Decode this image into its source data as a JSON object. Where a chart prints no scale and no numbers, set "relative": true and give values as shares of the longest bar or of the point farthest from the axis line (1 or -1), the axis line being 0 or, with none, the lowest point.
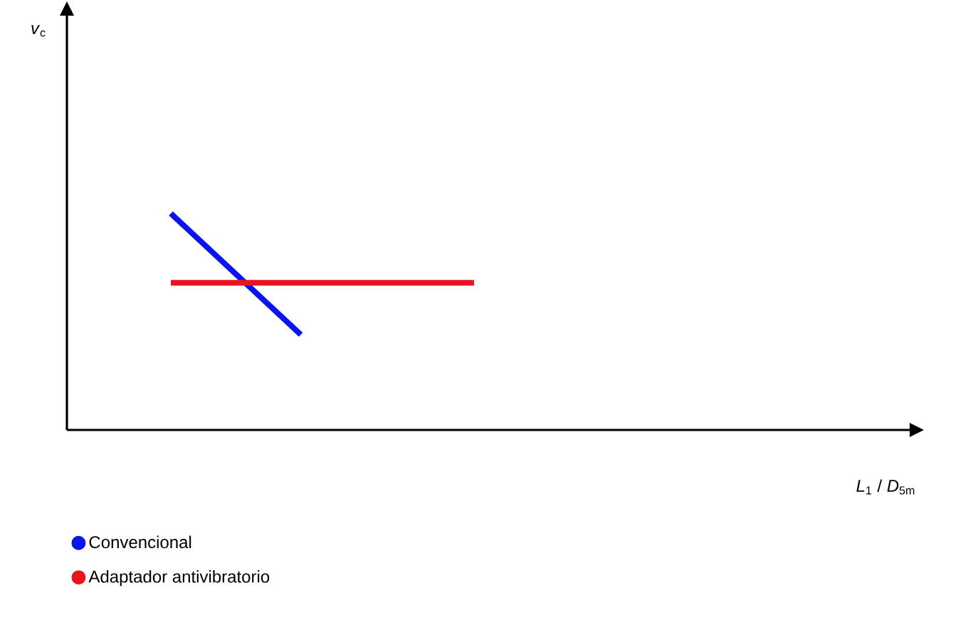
{
  "chart_data": {
    "type": "line",
    "relative": true,
    "annotations": [
      "*v*$_{c}$",
      "*L*$_{1}$ / *D*$_{5m}$"
    ],
    "categories": [
      null,
      null,
      null,
      null,
      null,
      null,
      null,
      null
    ],
    "series": [
      {
        "name": "Convencional",
        "color": "#0a14f0",
        "values": [
          1,
          null,
          null,
          0.44,
          null,
          null,
          null,
          null
        ]
      },
      {
        "name": "Adaptador antivibratorio",
        "color": "#e8141e",
        "values": [
          0.68,
          null,
          null,
          null,
          null,
          null,
          null,
          0.68
        ]
      }
    ],
    "legend": "bottom",
    "marker": "none",
    "line_style": "solid"
  }
}
